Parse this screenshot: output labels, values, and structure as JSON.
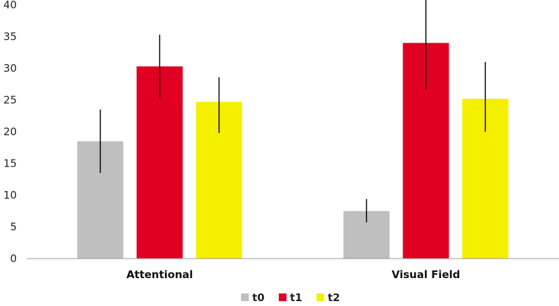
{
  "chart_data": {
    "type": "bar",
    "title": "",
    "xlabel": "",
    "ylabel": "",
    "categories": [
      "Attentional",
      "Visual Field"
    ],
    "ylim": [
      0,
      40
    ],
    "yticks": [
      0,
      5,
      10,
      15,
      20,
      25,
      30,
      35,
      40
    ],
    "grid": false,
    "legend_position": "bottom",
    "series": [
      {
        "name": "t0",
        "color": "#bfbfbf",
        "values": [
          18.5,
          7.5
        ],
        "error_low": [
          13.5,
          5.7
        ],
        "error_high": [
          23.5,
          9.4
        ]
      },
      {
        "name": "t1",
        "color": "#e00022",
        "values": [
          30.3,
          34.0
        ],
        "error_low": [
          25.3,
          26.7
        ],
        "error_high": [
          35.3,
          41.2
        ]
      },
      {
        "name": "t2",
        "color": "#f5ef00",
        "values": [
          24.7,
          25.2
        ],
        "error_low": [
          19.8,
          20.0
        ],
        "error_high": [
          28.6,
          31.0
        ]
      }
    ]
  }
}
